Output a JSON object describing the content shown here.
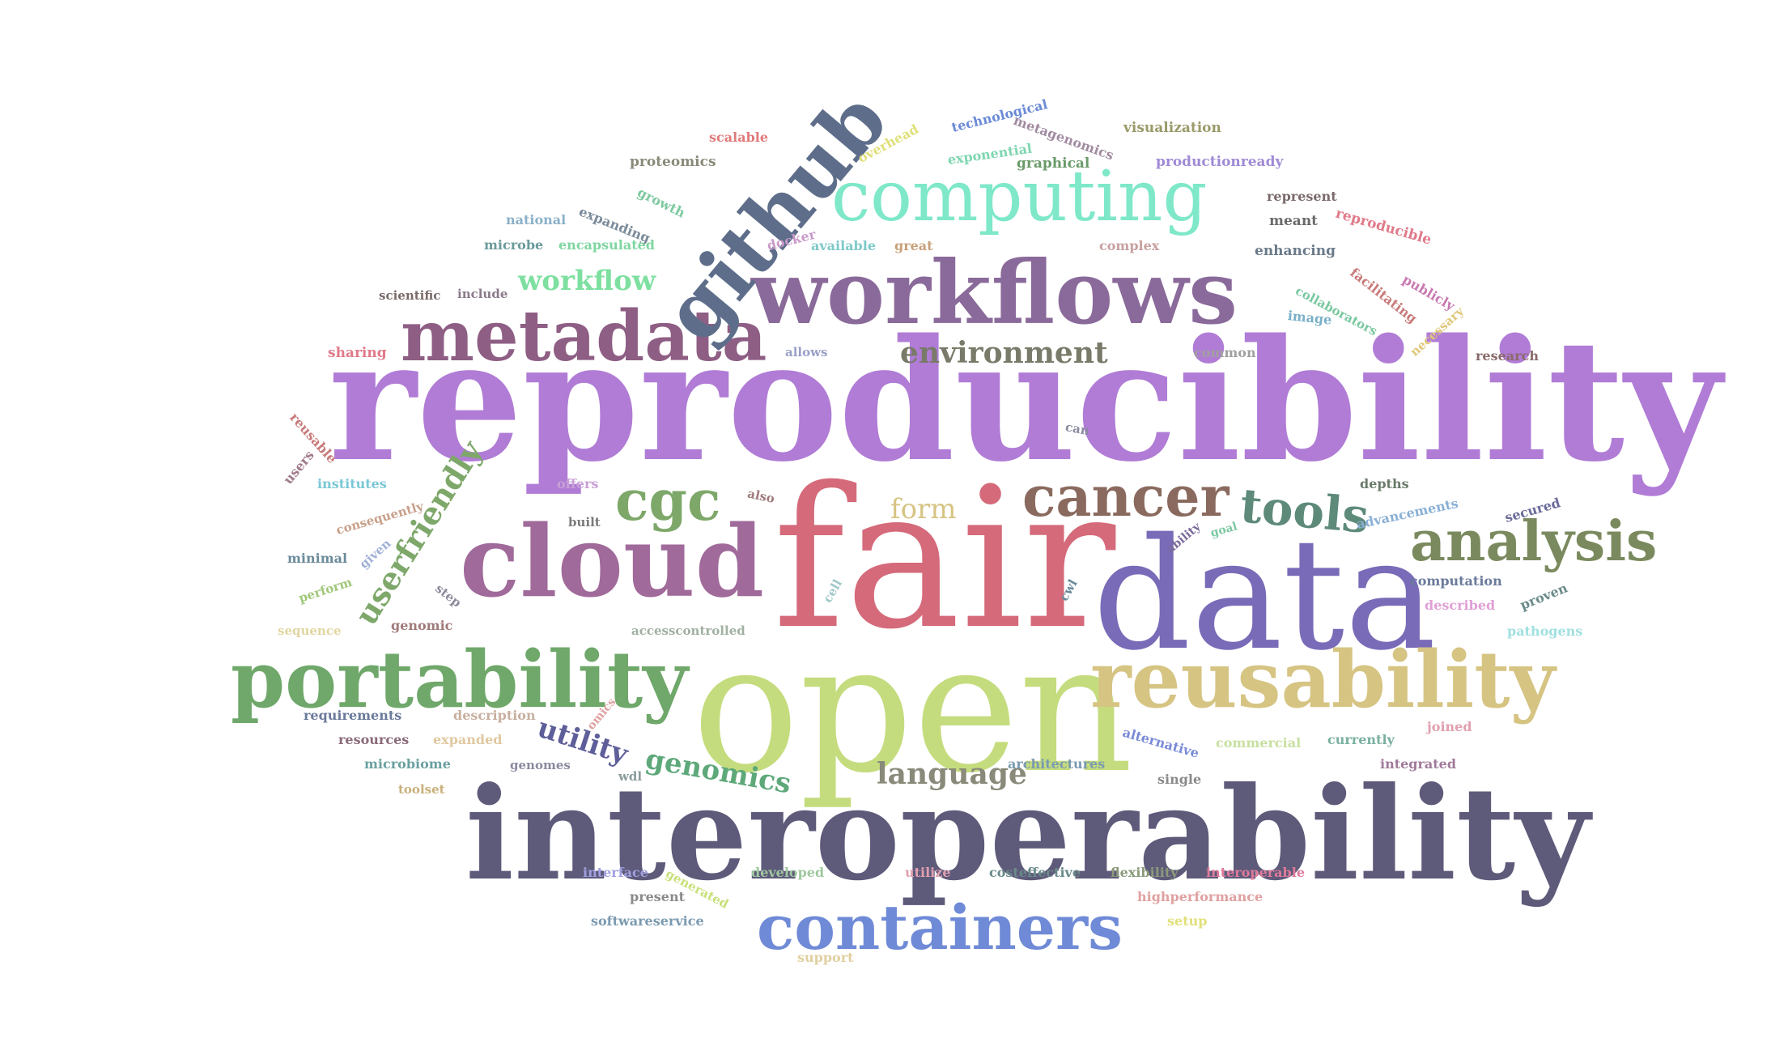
{
  "words": [
    {
      "text": "reproducibility",
      "color": "#b07cd6"
    },
    {
      "text": "fair",
      "color": "#d46a7a"
    },
    {
      "text": "open",
      "color": "#c5dc7e"
    },
    {
      "text": "interoperability",
      "color": "#5e5a7a"
    },
    {
      "text": "data",
      "color": "#7a6bb8"
    },
    {
      "text": "workflows",
      "color": "#8a6a9a"
    },
    {
      "text": "cloud",
      "color": "#a06a9a"
    },
    {
      "text": "metadata",
      "color": "#8e5e84"
    },
    {
      "text": "computing",
      "color": "#7ee8c9"
    },
    {
      "text": "github",
      "color": "#5e6e8a"
    },
    {
      "text": "portability",
      "color": "#6fa86a"
    },
    {
      "text": "reusability",
      "color": "#d6c483"
    },
    {
      "text": "containers",
      "color": "#6f8ad6"
    },
    {
      "text": "analysis",
      "color": "#7a8a5e"
    },
    {
      "text": "cancer",
      "color": "#8a6a5e"
    },
    {
      "text": "cgc",
      "color": "#7ea86a"
    },
    {
      "text": "tools",
      "color": "#5e8a7a"
    },
    {
      "text": "userfriendly",
      "color": "#7ea86a"
    },
    {
      "text": "environment",
      "color": "#7a7a6a"
    },
    {
      "text": "genomics",
      "color": "#5ea87a"
    },
    {
      "text": "utility",
      "color": "#5e5e9a"
    },
    {
      "text": "language",
      "color": "#8a8a7a"
    },
    {
      "text": "form",
      "color": "#d6c483"
    },
    {
      "text": "workflow",
      "color": "#7ee0a0"
    },
    {
      "text": "technological",
      "color": "#6a8ad6"
    },
    {
      "text": "scalable",
      "color": "#e07a7a"
    },
    {
      "text": "overhead",
      "color": "#e0e07a"
    },
    {
      "text": "metagenomics",
      "color": "#a08aa0"
    },
    {
      "text": "visualization",
      "color": "#9a9a6a"
    },
    {
      "text": "proteomics",
      "color": "#8a8a7a"
    },
    {
      "text": "exponential",
      "color": "#7ed6b0"
    },
    {
      "text": "graphical",
      "color": "#6a9a6a"
    },
    {
      "text": "productionready",
      "color": "#a08ad6"
    },
    {
      "text": "growth",
      "color": "#7ec9a0"
    },
    {
      "text": "represent",
      "color": "#7a6a6a"
    },
    {
      "text": "national",
      "color": "#8ab0c8"
    },
    {
      "text": "expanding",
      "color": "#7a8a9a"
    },
    {
      "text": "meant",
      "color": "#6a6a6a"
    },
    {
      "text": "reproducible",
      "color": "#e07a8a"
    },
    {
      "text": "docker",
      "color": "#c89ac8"
    },
    {
      "text": "microbe",
      "color": "#6a9a9a"
    },
    {
      "text": "encapsulated",
      "color": "#7ed6a0"
    },
    {
      "text": "available",
      "color": "#7ec9c9"
    },
    {
      "text": "great",
      "color": "#c8a07a"
    },
    {
      "text": "complex",
      "color": "#c8a0a0"
    },
    {
      "text": "enhancing",
      "color": "#6a7a8a"
    },
    {
      "text": "facilitating",
      "color": "#c87a7a"
    },
    {
      "text": "publicly",
      "color": "#c87ab0"
    },
    {
      "text": "scientific",
      "color": "#7a6a6a"
    },
    {
      "text": "include",
      "color": "#8a7a8a"
    },
    {
      "text": "collaborators",
      "color": "#7ac8a0"
    },
    {
      "text": "image",
      "color": "#7ab0c8"
    },
    {
      "text": "necessary",
      "color": "#e0c87a"
    },
    {
      "text": "sharing",
      "color": "#e07a8a"
    },
    {
      "text": "allows",
      "color": "#9aa0c8"
    },
    {
      "text": "common",
      "color": "#a0a0a0"
    },
    {
      "text": "research",
      "color": "#8a6a6a"
    },
    {
      "text": "reusable",
      "color": "#c87a7a"
    },
    {
      "text": "users",
      "color": "#a07a8a"
    },
    {
      "text": "can",
      "color": "#8a8aa0"
    },
    {
      "text": "institutes",
      "color": "#7ac8d6"
    },
    {
      "text": "offers",
      "color": "#c8a0d6"
    },
    {
      "text": "also",
      "color": "#a07a7a"
    },
    {
      "text": "depths",
      "color": "#6a7a6a"
    },
    {
      "text": "advancements",
      "color": "#8ab0d6"
    },
    {
      "text": "secured",
      "color": "#6a6a9a"
    },
    {
      "text": "consequently",
      "color": "#c8a08a"
    },
    {
      "text": "built",
      "color": "#7a7a7a"
    },
    {
      "text": "ability",
      "color": "#7a6a9a"
    },
    {
      "text": "goal",
      "color": "#7ac8a0"
    },
    {
      "text": "minimal",
      "color": "#6a8a9a"
    },
    {
      "text": "given",
      "color": "#a0b0d6"
    },
    {
      "text": "perform",
      "color": "#a0c87a"
    },
    {
      "text": "step",
      "color": "#8a8a9a"
    },
    {
      "text": "cell",
      "color": "#a0c8c8"
    },
    {
      "text": "cwl",
      "color": "#6a8a9a"
    },
    {
      "text": "computation",
      "color": "#6a7a9a"
    },
    {
      "text": "described",
      "color": "#e0a0d6"
    },
    {
      "text": "proven",
      "color": "#6a8a8a"
    },
    {
      "text": "sequence",
      "color": "#e0d6a0"
    },
    {
      "text": "genomic",
      "color": "#a07a7a"
    },
    {
      "text": "accesscontrolled",
      "color": "#a0b0a0"
    },
    {
      "text": "pathogens",
      "color": "#a0e0e0"
    },
    {
      "text": "requirements",
      "color": "#6a7a9a"
    },
    {
      "text": "description",
      "color": "#c8b0a0"
    },
    {
      "text": "omics",
      "color": "#e0a0a0"
    },
    {
      "text": "alternative",
      "color": "#7a8ad6"
    },
    {
      "text": "commercial",
      "color": "#c8e0a0"
    },
    {
      "text": "currently",
      "color": "#7ab0a0"
    },
    {
      "text": "joined",
      "color": "#e0a0b0"
    },
    {
      "text": "resources",
      "color": "#8a6a7a"
    },
    {
      "text": "expanded",
      "color": "#e0c8a0"
    },
    {
      "text": "microbiome",
      "color": "#6aa0a0"
    },
    {
      "text": "genomes",
      "color": "#8a8aa0"
    },
    {
      "text": "wdl",
      "color": "#8a9a9a"
    },
    {
      "text": "architectures",
      "color": "#7a9ab0"
    },
    {
      "text": "single",
      "color": "#8a8a8a"
    },
    {
      "text": "integrated",
      "color": "#a07a9a"
    },
    {
      "text": "toolset",
      "color": "#c8b07a"
    },
    {
      "text": "interface",
      "color": "#a0a0e0"
    },
    {
      "text": "generated",
      "color": "#c8e07a"
    },
    {
      "text": "developed",
      "color": "#a0c8a0"
    },
    {
      "text": "utilize",
      "color": "#e0a0b0"
    },
    {
      "text": "costeffective",
      "color": "#6a8a8a"
    },
    {
      "text": "flexibility",
      "color": "#8a9a7a"
    },
    {
      "text": "interoperable",
      "color": "#e07a9a"
    },
    {
      "text": "present",
      "color": "#8a8a8a"
    },
    {
      "text": "highperformance",
      "color": "#e0a0a0"
    },
    {
      "text": "softwareservice",
      "color": "#7a9ab0"
    },
    {
      "text": "setup",
      "color": "#e0e07a"
    },
    {
      "text": "support",
      "color": "#e0d0a0"
    }
  ]
}
